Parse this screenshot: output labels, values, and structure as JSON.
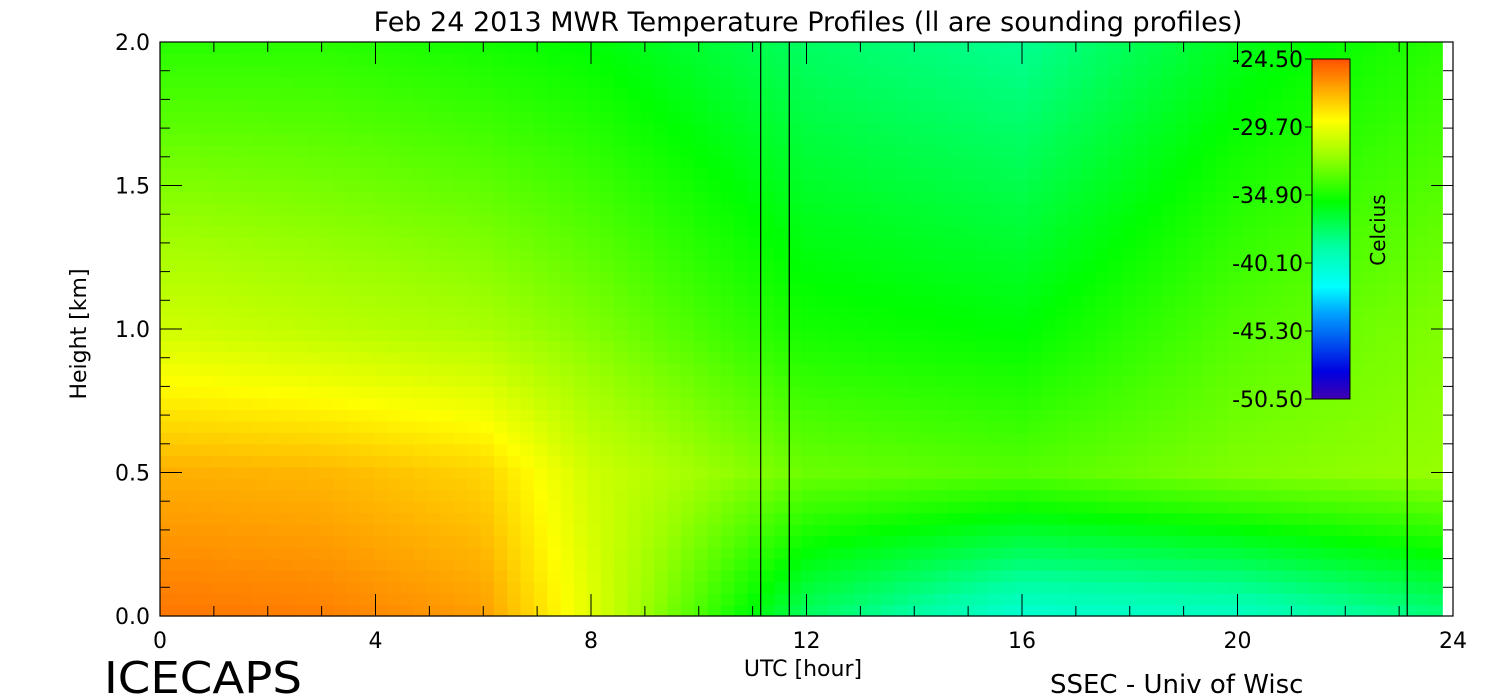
{
  "chart_data": {
    "type": "heatmap",
    "title": "Feb 24 2013 MWR Temperature Profiles (ll are sounding profiles)",
    "xlabel": "UTC [hour]",
    "ylabel": "Height [km]",
    "xlim": [
      0,
      24
    ],
    "ylim": [
      0,
      2
    ],
    "x_ticks": [
      "0",
      "4",
      "8",
      "12",
      "16",
      "20",
      "24"
    ],
    "y_ticks": [
      "0.0",
      "0.5",
      "1.0",
      "1.5",
      "2.0"
    ],
    "colorbar": {
      "label": "Celcius",
      "ticks": [
        "-24.50",
        "-29.70",
        "-34.90",
        "-40.10",
        "-45.30",
        "-50.50"
      ],
      "range": [
        -50.5,
        -24.5
      ]
    },
    "sounding_times_utc": [
      11.15,
      11.68,
      23.15
    ],
    "profile_summary": [
      {
        "x": 0.5,
        "temp_surface": -25.5,
        "temp_0_5km": -27.0,
        "temp_1km": -30.5,
        "temp_2km": -34.5
      },
      {
        "x": 3,
        "temp_surface": -25.7,
        "temp_0_5km": -27.2,
        "temp_1km": -31.0,
        "temp_2km": -34.5
      },
      {
        "x": 6,
        "temp_surface": -26.5,
        "temp_0_5km": -28.0,
        "temp_1km": -31.5,
        "temp_2km": -35.0
      },
      {
        "x": 8,
        "temp_surface": -30.0,
        "temp_0_5km": -30.5,
        "temp_1km": -32.5,
        "temp_2km": -35.5
      },
      {
        "x": 12,
        "temp_surface": -37.5,
        "temp_0_5km": -33.0,
        "temp_1km": -35.0,
        "temp_2km": -37.5
      },
      {
        "x": 16,
        "temp_surface": -40.5,
        "temp_0_5km": -33.5,
        "temp_1km": -35.5,
        "temp_2km": -38.5
      },
      {
        "x": 20,
        "temp_surface": -40.0,
        "temp_0_5km": -32.5,
        "temp_1km": -33.5,
        "temp_2km": -36.0
      },
      {
        "x": 23.8,
        "temp_surface": -38.0,
        "temp_0_5km": -32.0,
        "temp_1km": -32.5,
        "temp_2km": -34.5
      }
    ]
  },
  "footer": {
    "logo": "ICECAPS",
    "credit": "SSEC - Univ of Wisc"
  }
}
